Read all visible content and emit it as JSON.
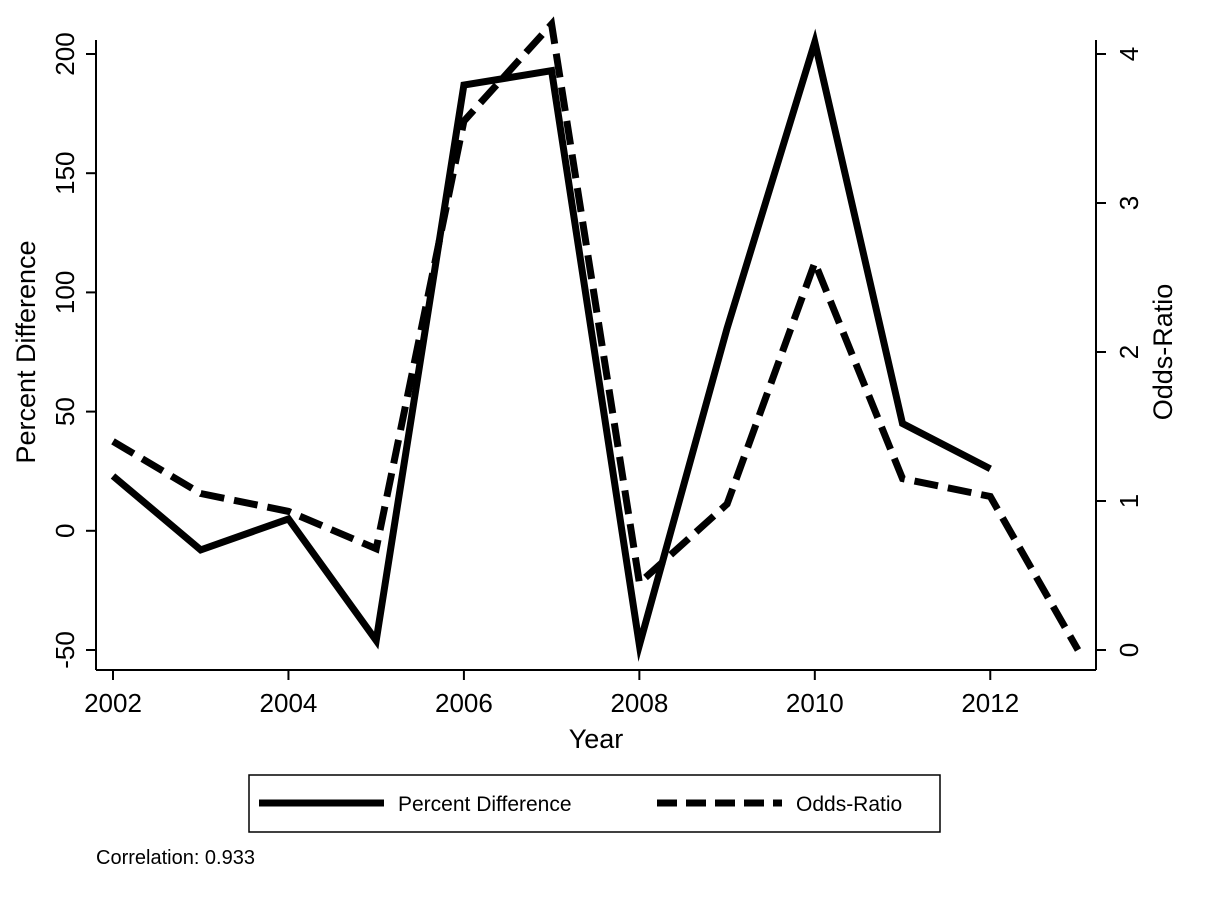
{
  "chart_data": {
    "type": "line",
    "x": [
      2002,
      2003,
      2004,
      2005,
      2006,
      2007,
      2008,
      2009,
      2010,
      2011,
      2012,
      2013
    ],
    "series": [
      {
        "name": "Percent Difference",
        "axis": "left",
        "style": "solid",
        "values": [
          23,
          -8,
          5,
          -46,
          187,
          193,
          -48,
          85,
          205,
          45,
          26,
          null
        ]
      },
      {
        "name": "Odds-Ratio",
        "axis": "right",
        "style": "dashed",
        "values": [
          1.4,
          1.05,
          0.93,
          0.68,
          3.55,
          4.2,
          0.45,
          0.98,
          2.6,
          1.15,
          1.03,
          0.0
        ]
      }
    ],
    "xlabel": "Year",
    "ylabel": "Percent Difference",
    "y2label": "Odds-Ratio",
    "xlim": [
      2002,
      2013
    ],
    "ylim": [
      -50,
      200
    ],
    "y2lim": [
      0,
      4
    ],
    "xticks": [
      "2002",
      "2004",
      "2006",
      "2008",
      "2010",
      "2012"
    ],
    "yticks": [
      "-50",
      "0",
      "50",
      "100",
      "150",
      "200"
    ],
    "y2ticks": [
      "0",
      "1",
      "2",
      "3",
      "4"
    ],
    "grid": false,
    "legend": "bottom",
    "annotation": "Correlation: 0.933",
    "line_color": "#000000"
  }
}
